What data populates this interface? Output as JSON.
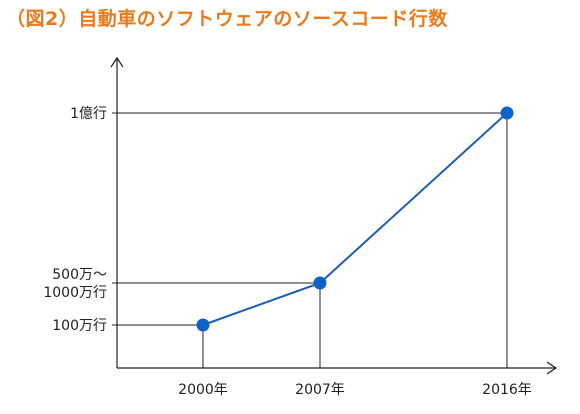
{
  "chart_data": {
    "type": "line",
    "title": "（図2）自動車のソフトウェアのソースコード行数",
    "xlabel": "",
    "ylabel": "",
    "categories": [
      "2000年",
      "2007年",
      "2016年"
    ],
    "x": [
      2000,
      2007,
      2016
    ],
    "y_ticks": [
      {
        "label": [
          "100万行"
        ],
        "value": 1000000
      },
      {
        "label": [
          "500万～",
          "1000万行"
        ],
        "value": 10000000
      },
      {
        "label": [
          "1億行"
        ],
        "value": 100000000
      }
    ],
    "series": [
      {
        "values": [
          1000000,
          10000000,
          100000000
        ]
      }
    ],
    "grid": false,
    "colors": {
      "title": "#ec7a1c",
      "line": "#1a5fb4",
      "point": "#0e63c6",
      "axis": "#222222",
      "guide": "#222222"
    }
  }
}
